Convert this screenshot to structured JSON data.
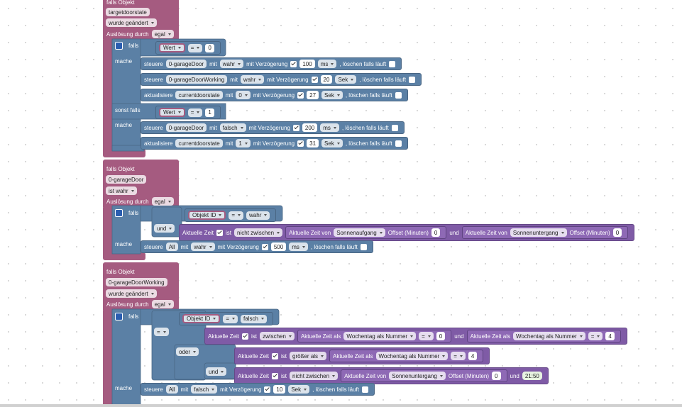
{
  "rows": [
    [
      "falls Objekt"
    ],
    [
      "targetdoorstate"
    ],
    [
      "wurde geändert"
    ],
    [
      "Auslösung durch",
      "egal"
    ],
    [
      "falls"
    ],
    [
      "Wert",
      "=",
      "0"
    ],
    [
      "mache"
    ],
    [
      "steuere",
      "0-garageDoor",
      "mit",
      "wahr",
      "mit Verzögerung",
      "100",
      "ms",
      ", löschen falls läuft"
    ],
    [
      "steuere",
      "0-garageDoorWorking",
      "mit",
      "wahr",
      "mit Verzögerung",
      "20",
      "Sek",
      ", löschen falls läuft"
    ],
    [
      "aktualisiere",
      "currentdoorstate",
      "mit",
      "0",
      "mit Verzögerung",
      "27",
      "Sek",
      ", löschen falls läuft"
    ],
    [
      "sonst falls"
    ],
    [
      "Wert",
      "=",
      "1"
    ],
    [
      "mache"
    ],
    [
      "steuere",
      "0-garageDoor",
      "mit",
      "falsch",
      "mit Verzögerung",
      "200",
      "ms",
      ", löschen falls läuft"
    ],
    [
      "aktualisiere",
      "currentdoorstate",
      "mit",
      "1",
      "mit Verzögerung",
      "31",
      "Sek",
      ", löschen falls läuft"
    ],
    [
      "falls Objekt"
    ],
    [
      "0-garageDoor"
    ],
    [
      "ist wahr"
    ],
    [
      "Auslösung durch",
      "egal"
    ],
    [
      "falls"
    ],
    [
      "Objekt ID",
      "=",
      "wahr"
    ],
    [
      "und"
    ],
    [
      "Aktuelle Zeit",
      "ist",
      "nicht zwischen",
      "Aktuelle Zeit von",
      "Sonnenaufgang",
      "Offset (Minuten)",
      "0",
      "und",
      "Aktuelle Zeit von",
      "Sonnenuntergang",
      "Offset (Minuten)",
      "0"
    ],
    [
      "mache"
    ],
    [
      "steuere",
      "All",
      "mit",
      "wahr",
      "mit Verzögerung",
      "500",
      "ms",
      ", löschen falls läuft"
    ],
    [
      "falls Objekt"
    ],
    [
      "0-garageDoorWorking"
    ],
    [
      "wurde geändert"
    ],
    [
      "Auslösung durch",
      "egal"
    ],
    [
      "falls"
    ],
    [
      "Objekt ID",
      "=",
      "falsch"
    ],
    [
      "="
    ],
    [
      "Aktuelle Zeit",
      "ist",
      "zwischen",
      "Aktuelle Zeit als",
      "Wochentag als Nummer",
      "=",
      "0",
      "und",
      "Aktuelle Zeit als",
      "Wochentag als Nummer",
      "=",
      "4"
    ],
    [
      "oder"
    ],
    [
      "Aktuelle Zeit",
      "ist",
      "größer als",
      "Aktuelle Zeit als",
      "Wochentag als Nummer",
      "=",
      "4"
    ],
    [
      "und"
    ],
    [
      "Aktuelle Zeit",
      "ist",
      "nicht zwischen",
      "Aktuelle Zeit von",
      "Sonnenuntergang",
      "Offset (Minuten)",
      "0",
      "und",
      "21:50"
    ],
    [
      "mache"
    ],
    [
      "steuere",
      "All",
      "mit",
      "falsch",
      "mit Verzögerung",
      "10",
      "Sek",
      ", löschen falls läuft"
    ]
  ]
}
